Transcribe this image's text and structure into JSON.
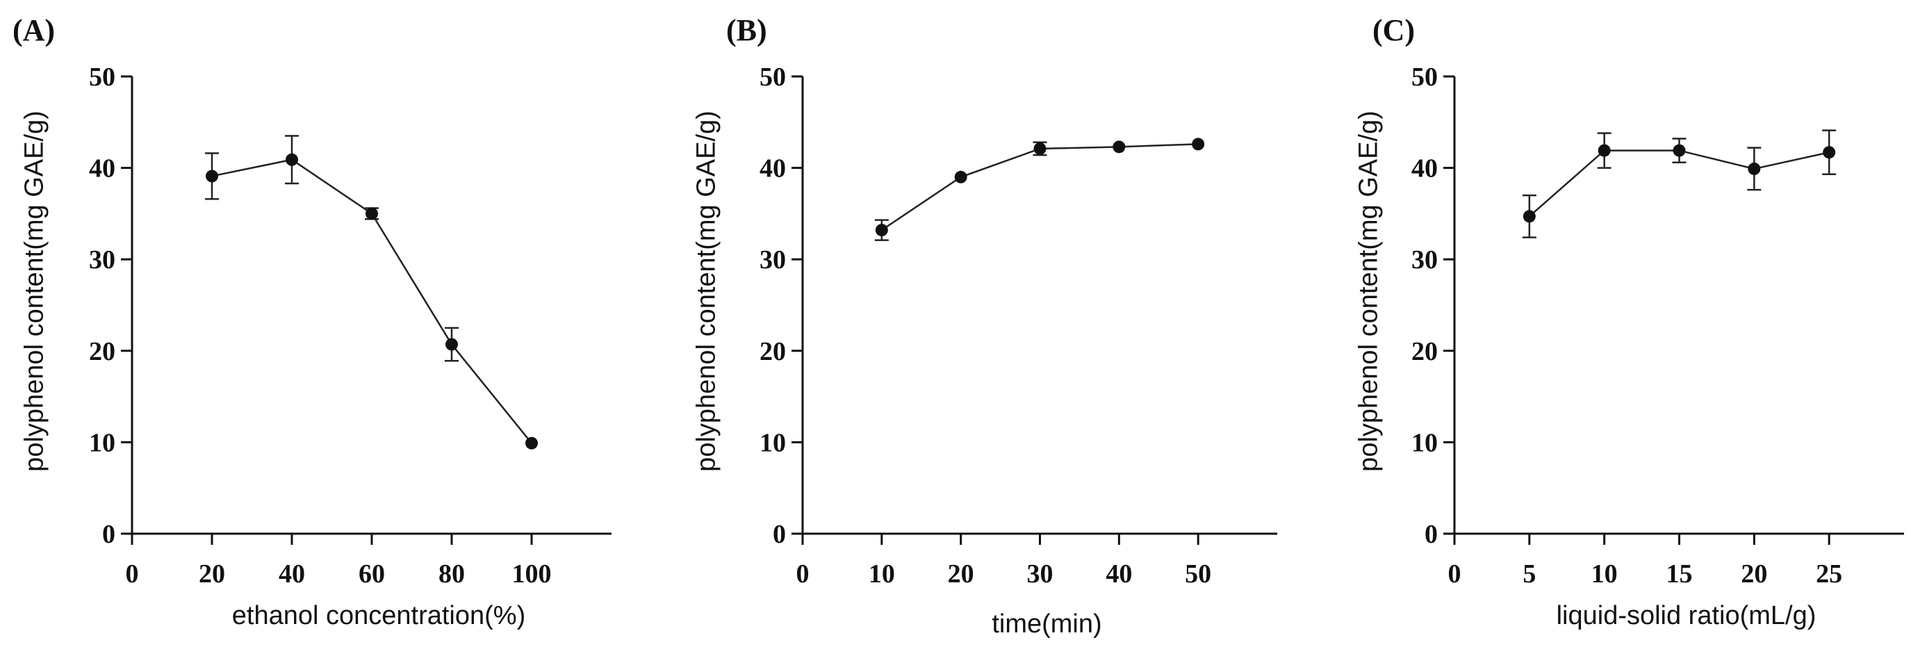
{
  "chart_data": [
    {
      "type": "line",
      "panel_label": "(A)",
      "xlabel": "ethanol concentration(%)",
      "ylabel": "polyphenol content(mg GAE/g)",
      "xlim": [
        0,
        120
      ],
      "ylim": [
        0,
        50
      ],
      "xticks": [
        0,
        20,
        40,
        60,
        80,
        100
      ],
      "yticks": [
        0,
        10,
        20,
        30,
        40,
        50
      ],
      "x": [
        20,
        40,
        60,
        80,
        100
      ],
      "values": [
        39.1,
        40.9,
        35.0,
        20.7,
        9.9
      ],
      "errors": [
        2.5,
        2.6,
        0.6,
        1.8,
        0.2
      ]
    },
    {
      "type": "line",
      "panel_label": "(B)",
      "xlabel": "time(min)",
      "ylabel": "polyphenol content(mg GAE/g)",
      "xlim": [
        0,
        60
      ],
      "ylim": [
        0,
        50
      ],
      "xticks": [
        0,
        10,
        20,
        30,
        40,
        50
      ],
      "yticks": [
        0,
        10,
        20,
        30,
        40,
        50
      ],
      "x": [
        10,
        20,
        30,
        40,
        50
      ],
      "values": [
        33.2,
        39.0,
        42.1,
        42.3,
        42.6
      ],
      "errors": [
        1.1,
        0.4,
        0.7,
        0.3,
        0.2
      ]
    },
    {
      "type": "line",
      "panel_label": "(C)",
      "xlabel": "liquid-solid ratio(mL/g)",
      "ylabel": "polyphenol content(mg GAE/g)",
      "xlim": [
        0,
        30
      ],
      "ylim": [
        0,
        50
      ],
      "xticks": [
        0,
        5,
        10,
        15,
        20,
        25
      ],
      "yticks": [
        0,
        10,
        20,
        30,
        40,
        50
      ],
      "x": [
        5,
        10,
        15,
        20,
        25
      ],
      "values": [
        34.7,
        41.9,
        41.9,
        39.9,
        41.7
      ],
      "errors": [
        2.3,
        1.9,
        1.3,
        2.3,
        2.4
      ]
    }
  ]
}
